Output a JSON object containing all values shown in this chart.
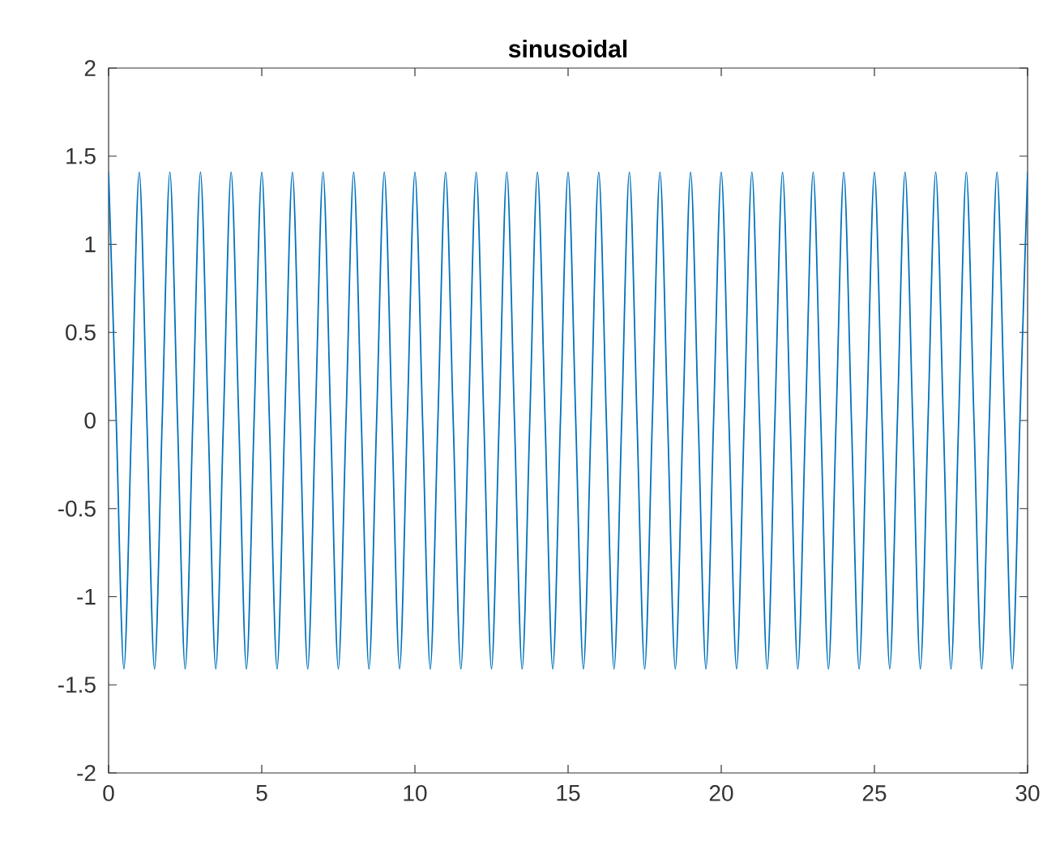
{
  "chart_data": {
    "type": "line",
    "title": "sinusoidal",
    "xlim": [
      0,
      30
    ],
    "ylim": [
      -2,
      2
    ],
    "xticks": [
      0,
      5,
      10,
      15,
      20,
      25,
      30
    ],
    "yticks": [
      -2,
      -1.5,
      -1,
      -0.5,
      0,
      0.5,
      1,
      1.5,
      2
    ],
    "line_style": "solid",
    "marker": "none",
    "series": [
      {
        "color": "#0072bd",
        "x": [
          0,
          0.25,
          0.5,
          0.75,
          1,
          1.25,
          1.5,
          1.75,
          2,
          2.25,
          2.5,
          2.75,
          3,
          3.25,
          3.5,
          3.75,
          4,
          4.25,
          4.5,
          4.75,
          5,
          5.25,
          5.5,
          5.75,
          6,
          6.25,
          6.5,
          6.75,
          7,
          7.25,
          7.5,
          7.75,
          8,
          8.25,
          8.5,
          8.75,
          9,
          9.25,
          9.5,
          9.75,
          10,
          10.25,
          10.5,
          10.75,
          11,
          11.25,
          11.5,
          11.75,
          12,
          12.25,
          12.5,
          12.75,
          13,
          13.25,
          13.5,
          13.75,
          14,
          14.25,
          14.5,
          14.75,
          15,
          15.25,
          15.5,
          15.75,
          16,
          16.25,
          16.5,
          16.75,
          17,
          17.25,
          17.5,
          17.75,
          18,
          18.25,
          18.5,
          18.75,
          19,
          19.25,
          19.5,
          19.75,
          20,
          20.25,
          20.5,
          20.75,
          21,
          21.25,
          21.5,
          21.75,
          22,
          22.25,
          22.5,
          22.75,
          23,
          23.25,
          23.5,
          23.75,
          24,
          24.25,
          24.5,
          24.75,
          25,
          25.25,
          25.5,
          25.75,
          26,
          26.25,
          26.5,
          26.75,
          27,
          27.25,
          27.5,
          27.75,
          28,
          28.25,
          28.5,
          28.75,
          29,
          29.25,
          29.5,
          29.75,
          30
        ],
        "values": [
          1.41,
          0,
          -1.41,
          0,
          1.41,
          0,
          -1.41,
          0,
          1.41,
          0,
          -1.41,
          0,
          1.41,
          0,
          -1.41,
          0,
          1.41,
          0,
          -1.41,
          0,
          1.41,
          0,
          -1.41,
          0,
          1.41,
          0,
          -1.41,
          0,
          1.41,
          0,
          -1.41,
          0,
          1.41,
          0,
          -1.41,
          0,
          1.41,
          0,
          -1.41,
          0,
          1.41,
          0,
          -1.41,
          0,
          1.41,
          0,
          -1.41,
          0,
          1.41,
          0,
          -1.41,
          0,
          1.41,
          0,
          -1.41,
          0,
          1.41,
          0,
          -1.41,
          0,
          1.41,
          0,
          -1.41,
          0,
          1.41,
          0,
          -1.41,
          0,
          1.41,
          0,
          -1.41,
          0,
          1.41,
          0,
          -1.41,
          0,
          1.41,
          0,
          -1.41,
          0,
          1.41,
          0,
          -1.41,
          0,
          1.41,
          0,
          -1.41,
          0,
          1.41,
          0,
          -1.41,
          0,
          1.41,
          0,
          -1.41,
          0,
          1.41,
          0,
          -1.41,
          0,
          1.41,
          0,
          -1.41,
          0,
          1.41,
          0,
          -1.41,
          0,
          1.41,
          0,
          -1.41,
          0,
          1.41,
          0,
          -1.41,
          0,
          1.41,
          0,
          -1.41,
          0,
          1.41
        ]
      }
    ]
  }
}
